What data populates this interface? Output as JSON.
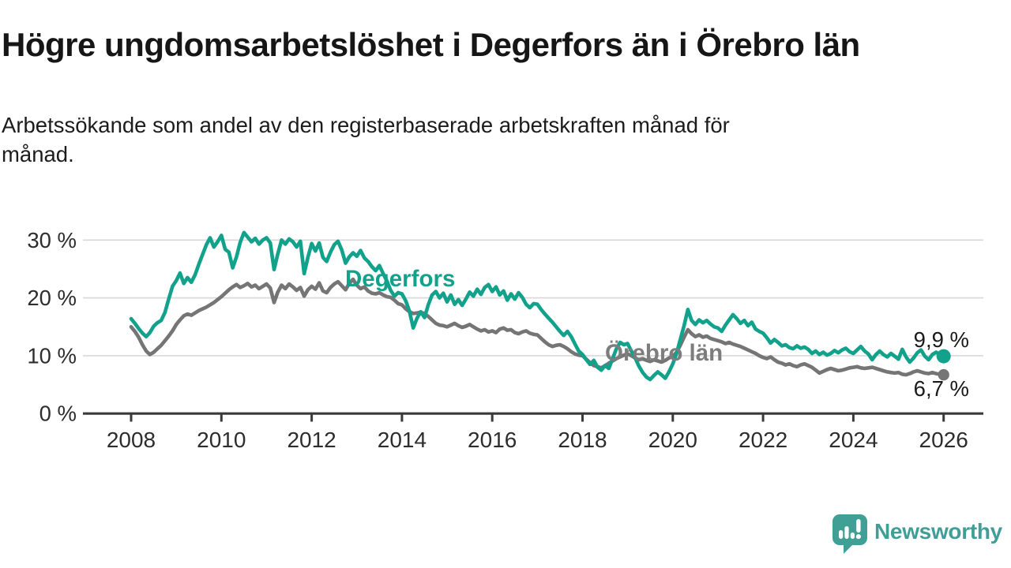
{
  "title": "Högre ungdomsarbetslöshet i Degerfors än i Örebro län",
  "subtitle": {
    "line1": "Arbetssökande som andel av den registerbaserade arbetskraften månad för",
    "line2": "månad."
  },
  "logo": {
    "text": "Newsworthy",
    "color": "#3f9e96"
  },
  "colors": {
    "degerfors": "#12a28c",
    "orebro_line": "#757575",
    "orebro_label": "#7d7d7d",
    "grid": "#d8d8d8",
    "axis": "#3a3a3a",
    "value_label": "#1a1a1a"
  },
  "chart_data": {
    "type": "line",
    "title": "Högre ungdomsarbetslöshet i Degerfors än i Örebro län",
    "subtitle": "Arbetssökande som andel av den registerbaserade arbetskraften månad för månad.",
    "x_unit": "months, Jan 2008 – Jan 2026",
    "x_start_year": 2008,
    "x_step_months": 1,
    "grid": "horizontal",
    "ylim": [
      0,
      32
    ],
    "y_ticks": [
      0,
      10,
      20,
      30
    ],
    "y_tick_labels": [
      "0 %",
      "10 %",
      "20 %",
      "30 %"
    ],
    "x_ticks": [
      2008,
      2010,
      2012,
      2014,
      2016,
      2018,
      2020,
      2022,
      2024,
      2026
    ],
    "x_tick_labels": [
      "2008",
      "2010",
      "2012",
      "2014",
      "2016",
      "2018",
      "2020",
      "2022",
      "2024",
      "2026"
    ],
    "legend_position": "inline-labels",
    "series": [
      {
        "name": "Örebro län",
        "color": "#757575",
        "end_label": "6,7 %",
        "end_value": 6.7,
        "values": [
          15.0,
          14.2,
          13.2,
          11.9,
          10.8,
          10.2,
          10.6,
          11.2,
          11.8,
          12.6,
          13.4,
          14.3,
          15.4,
          16.2,
          16.9,
          17.2,
          17.0,
          17.4,
          17.8,
          18.1,
          18.4,
          18.8,
          19.2,
          19.7,
          20.2,
          20.8,
          21.4,
          21.9,
          22.3,
          21.8,
          22.1,
          22.5,
          21.9,
          22.2,
          21.6,
          22.0,
          22.4,
          21.7,
          19.2,
          21.0,
          22.2,
          21.6,
          22.4,
          21.9,
          21.3,
          21.8,
          20.3,
          21.4,
          22.0,
          21.5,
          22.6,
          21.2,
          20.9,
          21.8,
          22.4,
          22.8,
          22.1,
          21.4,
          22.5,
          23.2,
          22.2,
          21.6,
          21.9,
          21.2,
          20.8,
          20.7,
          20.9,
          20.5,
          20.2,
          20.1,
          19.6,
          19.0,
          18.8,
          18.1,
          17.6,
          17.3,
          17.4,
          17.5,
          17.3,
          16.8,
          16.2,
          15.6,
          15.3,
          15.2,
          15.0,
          15.3,
          15.6,
          15.2,
          14.9,
          15.1,
          15.4,
          15.0,
          14.6,
          14.3,
          14.5,
          14.1,
          14.3,
          14.0,
          14.6,
          14.8,
          14.4,
          14.5,
          14.0,
          13.8,
          14.1,
          14.3,
          13.9,
          13.7,
          13.6,
          13.0,
          12.4,
          11.9,
          11.6,
          11.8,
          11.9,
          11.6,
          11.2,
          10.7,
          10.3,
          10.1,
          10.0,
          9.4,
          8.8,
          8.3,
          8.1,
          7.9,
          8.3,
          8.7,
          9.1,
          9.5,
          9.8,
          10.1,
          10.3,
          10.0,
          9.6,
          9.3,
          9.5,
          9.2,
          9.0,
          9.3,
          9.1,
          8.9,
          9.2,
          9.6,
          9.9,
          10.6,
          11.8,
          13.2,
          14.5,
          13.8,
          13.3,
          13.6,
          13.2,
          13.4,
          13.0,
          12.8,
          12.6,
          12.4,
          12.1,
          12.3,
          12.0,
          11.8,
          11.6,
          11.3,
          11.0,
          10.7,
          10.4,
          10.0,
          9.7,
          9.5,
          9.8,
          9.3,
          8.9,
          8.7,
          8.4,
          8.6,
          8.3,
          8.1,
          8.4,
          8.6,
          8.3,
          8.0,
          7.5,
          7.0,
          7.3,
          7.6,
          7.8,
          7.6,
          7.4,
          7.5,
          7.7,
          7.9,
          8.0,
          8.1,
          7.9,
          7.8,
          7.9,
          8.0,
          7.8,
          7.6,
          7.4,
          7.2,
          7.1,
          7.0,
          7.1,
          6.8,
          6.7,
          6.9,
          7.2,
          7.4,
          7.2,
          7.0,
          6.9,
          7.1,
          6.9,
          6.8,
          6.7
        ]
      },
      {
        "name": "Degerfors",
        "color": "#12a28c",
        "end_label": "9,9 %",
        "end_value": 9.9,
        "values": [
          16.4,
          15.6,
          14.7,
          13.9,
          13.3,
          14.0,
          15.1,
          15.7,
          16.1,
          17.5,
          19.8,
          22.0,
          23.0,
          24.3,
          22.5,
          23.5,
          22.7,
          24.0,
          25.8,
          27.5,
          29.2,
          30.4,
          28.8,
          29.7,
          30.8,
          28.4,
          27.9,
          25.2,
          27.1,
          29.6,
          31.3,
          30.5,
          29.7,
          30.3,
          29.3,
          30.0,
          30.4,
          29.5,
          24.9,
          27.6,
          30.0,
          29.3,
          30.2,
          29.7,
          28.8,
          29.8,
          24.2,
          27.0,
          29.4,
          28.1,
          29.5,
          27.0,
          26.3,
          27.9,
          29.2,
          29.8,
          28.3,
          26.0,
          27.1,
          27.8,
          27.2,
          28.2,
          26.9,
          26.3,
          25.4,
          24.7,
          25.6,
          24.2,
          22.9,
          21.3,
          20.3,
          20.9,
          20.7,
          19.5,
          17.7,
          14.8,
          16.5,
          17.6,
          16.6,
          18.8,
          20.5,
          21.1,
          20.0,
          20.8,
          19.3,
          20.5,
          18.9,
          19.7,
          18.7,
          19.8,
          21.0,
          20.3,
          21.5,
          20.6,
          21.8,
          22.3,
          21.1,
          21.9,
          20.5,
          21.2,
          19.6,
          20.7,
          19.8,
          20.9,
          20.1,
          18.9,
          18.3,
          19.0,
          18.9,
          18.0,
          17.2,
          16.5,
          15.8,
          15.0,
          14.2,
          13.5,
          14.2,
          13.3,
          12.0,
          10.8,
          10.2,
          9.3,
          8.5,
          9.2,
          8.0,
          7.5,
          8.3,
          7.8,
          9.5,
          11.2,
          12.3,
          11.9,
          12.1,
          10.8,
          9.6,
          8.2,
          7.1,
          6.3,
          5.9,
          6.6,
          7.2,
          6.7,
          6.1,
          7.2,
          8.6,
          10.4,
          12.8,
          15.2,
          18.0,
          16.1,
          15.4,
          16.2,
          15.7,
          16.1,
          15.5,
          15.0,
          14.8,
          14.2,
          15.3,
          16.2,
          17.1,
          16.4,
          15.6,
          16.1,
          15.2,
          15.8,
          14.6,
          14.2,
          13.9,
          13.1,
          12.2,
          12.8,
          12.3,
          11.7,
          11.9,
          11.4,
          11.2,
          11.7,
          11.3,
          11.5,
          11.1,
          10.4,
          10.8,
          10.2,
          10.6,
          10.1,
          10.4,
          10.9,
          10.5,
          11.0,
          11.3,
          10.7,
          10.4,
          11.0,
          11.6,
          10.8,
          10.3,
          9.3,
          10.2,
          10.8,
          10.2,
          9.8,
          10.4,
          9.9,
          9.4,
          11.1,
          9.8,
          8.9,
          9.6,
          10.5,
          11.0,
          9.9,
          9.3,
          10.2,
          10.6,
          10.2,
          9.9
        ]
      }
    ]
  }
}
